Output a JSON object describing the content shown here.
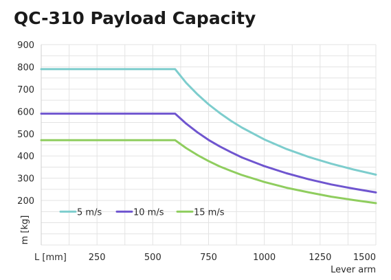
{
  "chart_data": {
    "type": "line",
    "title": "QC-310 Payload Capacity",
    "xlabel_left": "L [mm]",
    "xlabel_right": "Lever arm",
    "ylabel": "m [kg]",
    "xlim": [
      0,
      1500
    ],
    "ylim": [
      0,
      900
    ],
    "x_ticks": [
      250,
      500,
      750,
      1000,
      1250,
      1500
    ],
    "y_ticks": [
      200,
      300,
      400,
      500,
      600,
      700,
      800,
      900
    ],
    "grid": true,
    "legend_position": "lower-left",
    "series": [
      {
        "name": "5 m/s",
        "color": "#7dcdcd",
        "x": [
          0,
          600,
          650,
          700,
          750,
          800,
          850,
          900,
          1000,
          1100,
          1200,
          1300,
          1400,
          1500
        ],
        "values": [
          790,
          790,
          728,
          677,
          632,
          593,
          558,
          527,
          474,
          431,
          395,
          365,
          339,
          316
        ]
      },
      {
        "name": "10 m/s",
        "color": "#6f55cf",
        "x": [
          0,
          600,
          650,
          700,
          750,
          800,
          850,
          900,
          1000,
          1100,
          1200,
          1300,
          1400,
          1500
        ],
        "values": [
          590,
          590,
          545,
          506,
          472,
          443,
          417,
          393,
          354,
          322,
          295,
          272,
          253,
          236
        ]
      },
      {
        "name": "15 m/s",
        "color": "#8fcd5e",
        "x": [
          0,
          600,
          650,
          700,
          750,
          800,
          850,
          900,
          1000,
          1100,
          1200,
          1300,
          1400,
          1500
        ],
        "values": [
          471,
          471,
          435,
          404,
          377,
          353,
          333,
          314,
          283,
          257,
          236,
          217,
          202,
          188
        ]
      }
    ]
  }
}
